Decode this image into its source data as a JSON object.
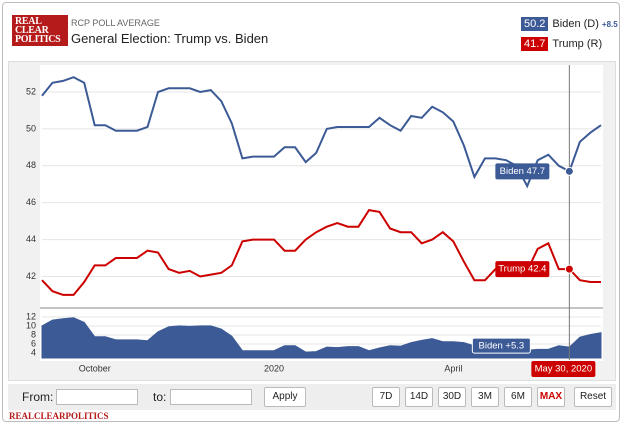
{
  "header": {
    "logo": [
      "REAL",
      "CLEAR",
      "POLITICS"
    ],
    "kicker": "RCP POLL AVERAGE",
    "title": "General Election: Trump vs. Biden"
  },
  "legend": [
    {
      "value": 50.2,
      "name": "Biden (D)",
      "spread": "+8.5",
      "color": "#3c5a96"
    },
    {
      "value": 41.7,
      "name": "Trump (R)",
      "color": "#cc0000"
    }
  ],
  "controls": {
    "from": "From:",
    "to": "to:",
    "apply": "Apply",
    "ranges": [
      "7D",
      "14D",
      "30D",
      "3M",
      "6M",
      "MAX"
    ],
    "active": "MAX",
    "reset": "Reset"
  },
  "footer": "REALCLEARPOLITICS",
  "chart_data": [
    {
      "type": "line",
      "series": [
        {
          "name": "Biden",
          "color": "#3c5a96",
          "values": [
            51.8,
            52.5,
            52.6,
            52.8,
            52.5,
            50.2,
            50.2,
            49.9,
            49.9,
            49.9,
            50.1,
            52,
            52.2,
            52.2,
            52.2,
            52,
            52.1,
            51.5,
            50.3,
            48.4,
            48.5,
            48.5,
            48.5,
            49,
            49,
            48.2,
            48.7,
            50,
            50.1,
            50.1,
            50.1,
            50.1,
            50.6,
            50.2,
            49.9,
            50.7,
            50.6,
            51.2,
            50.9,
            50.4,
            49.1,
            47.4,
            48.4,
            48.4,
            48.3,
            48,
            46.9,
            48.3,
            48.6,
            48,
            47.7,
            49.3,
            49.8,
            50.2
          ]
        },
        {
          "name": "Trump",
          "color": "#cc0000",
          "values": [
            41.8,
            41.2,
            41,
            41,
            41.7,
            42.6,
            42.6,
            43,
            43,
            43,
            43.4,
            43.3,
            42.4,
            42.2,
            42.3,
            42,
            42.1,
            42.2,
            42.6,
            43.9,
            44,
            44,
            44,
            43.4,
            43.4,
            44,
            44.4,
            44.7,
            44.9,
            44.7,
            44.7,
            45.6,
            45.5,
            44.6,
            44.4,
            44.4,
            43.8,
            44,
            44.4,
            43.9,
            42.8,
            41.8,
            41.8,
            42.4,
            42.3,
            42.4,
            42.3,
            43.5,
            43.8,
            42.4,
            42.4,
            41.8,
            41.7,
            41.7
          ]
        }
      ],
      "annotations": [
        "Biden 47.7",
        "Trump 42.4"
      ],
      "ylim": [
        40.4,
        53.3
      ],
      "yticks": [
        42,
        44,
        46,
        48,
        50,
        52
      ],
      "grid": true
    },
    {
      "type": "area",
      "categories": [
        null,
        null,
        null,
        null,
        null,
        "October",
        null,
        null,
        null,
        null,
        null,
        null,
        null,
        null,
        null,
        null,
        null,
        null,
        null,
        null,
        null,
        null,
        "2020",
        null,
        null,
        null,
        null,
        null,
        null,
        null,
        null,
        null,
        null,
        null,
        null,
        null,
        null,
        null,
        null,
        "April",
        null,
        null,
        null,
        null,
        null,
        null,
        null,
        null,
        null,
        null,
        null,
        null,
        null,
        null
      ],
      "series": [
        {
          "name": "Spread",
          "color": "#3c5a96",
          "values": [
            10,
            11.3,
            11.6,
            11.8,
            10.8,
            7.6,
            7.6,
            6.9,
            6.9,
            6.9,
            6.7,
            8.7,
            9.8,
            10,
            9.9,
            10,
            10,
            9.3,
            7.7,
            4.5,
            4.5,
            4.5,
            4.5,
            5.6,
            5.6,
            4.2,
            4.3,
            5.3,
            5.2,
            5.4,
            5.4,
            4.5,
            5.1,
            5.6,
            5.5,
            6.3,
            6.8,
            7.2,
            6.5,
            6.5,
            6.3,
            5.6,
            6.6,
            6,
            6,
            5.6,
            4.6,
            4.8,
            4.8,
            5.6,
            5.3,
            7.5,
            8.1,
            8.5
          ]
        }
      ],
      "annotations": [
        "Biden +5.3",
        "May 30, 2020"
      ],
      "ylim": [
        3.1,
        13.1
      ],
      "yticks": [
        4,
        6,
        8,
        10,
        12
      ],
      "grid": true
    }
  ]
}
